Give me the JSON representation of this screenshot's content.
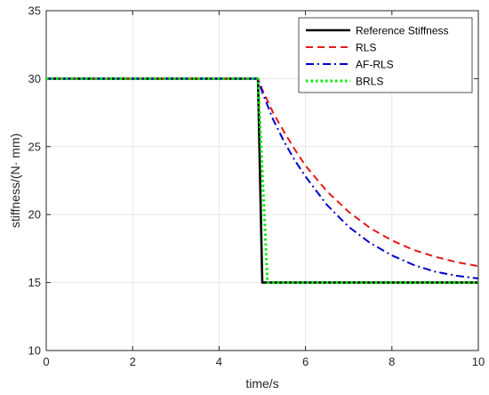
{
  "chart_data": {
    "type": "line",
    "title": "",
    "xlabel": "time/s",
    "ylabel": "stiffness/(N· mm)",
    "xlim": [
      0,
      10
    ],
    "ylim": [
      10,
      35
    ],
    "xticks": [
      0,
      2,
      4,
      6,
      8,
      10
    ],
    "yticks": [
      10,
      15,
      20,
      25,
      30,
      35
    ],
    "grid": true,
    "legend_position": "top-right",
    "series": [
      {
        "name": "Reference Stiffness",
        "color": "#000000",
        "style": "solid",
        "x": [
          0,
          4.9,
          5.0,
          10
        ],
        "y": [
          30,
          30,
          15,
          15
        ]
      },
      {
        "name": "RLS",
        "color": "#e41a1c",
        "style": "dashed",
        "x": [
          0,
          4.9,
          5.0,
          5.25,
          5.5,
          5.75,
          6.0,
          6.5,
          7.0,
          7.5,
          8.0,
          8.5,
          9.0,
          9.5,
          10.0
        ],
        "y": [
          30,
          30,
          29.2,
          27.5,
          26.1,
          24.8,
          23.6,
          21.7,
          20.2,
          19.0,
          18.1,
          17.4,
          16.9,
          16.5,
          16.2
        ]
      },
      {
        "name": "AF-RLS",
        "color": "#0000cd",
        "style": "dashdot",
        "x": [
          0,
          4.9,
          5.0,
          5.25,
          5.5,
          5.75,
          6.0,
          6.5,
          7.0,
          7.5,
          8.0,
          8.5,
          9.0,
          9.5,
          10.0
        ],
        "y": [
          30,
          30,
          29.0,
          27.0,
          25.4,
          24.0,
          22.8,
          20.7,
          19.1,
          17.9,
          17.0,
          16.3,
          15.8,
          15.5,
          15.3
        ]
      },
      {
        "name": "BRLS",
        "color": "#00ee00",
        "style": "dotted",
        "x": [
          0,
          4.9,
          5.12,
          10
        ],
        "y": [
          30,
          30,
          15,
          15
        ]
      }
    ]
  }
}
